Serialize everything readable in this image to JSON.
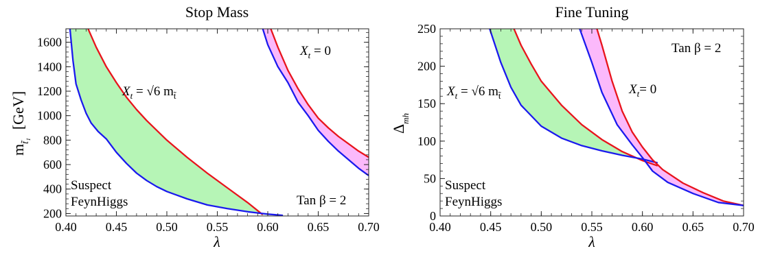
{
  "colors": {
    "suspect": "#e8141c",
    "feynhiggs": "#1a1aee",
    "band_mixed": "#b6f5b6",
    "band_zero": "#fbb9fb",
    "label_mixed": "#22aa22",
    "label_zero": "#8b1a8b"
  },
  "chart_data": [
    {
      "type": "area",
      "title": "Stop Mass",
      "xlabel": "λ",
      "ylabel_main": "m",
      "ylabel_sub": "t̃₁",
      "ylabel_unit": "[GeV]",
      "xlim": [
        0.4,
        0.7
      ],
      "ylim": [
        180,
        1710
      ],
      "xticks": [
        "0.40",
        "0.45",
        "0.50",
        "0.55",
        "0.60",
        "0.65",
        "0.70"
      ],
      "yticks": [
        "200",
        "400",
        "600",
        "800",
        "1000",
        "1200",
        "1400",
        "1600"
      ],
      "grid": false,
      "legend": {
        "placement": "bottom-left",
        "entries": [
          {
            "label": "Suspect",
            "color": "#e8141c"
          },
          {
            "label": "FeynHiggs",
            "color": "#1a1aee"
          }
        ]
      },
      "annotations": {
        "tanbeta": "Tan β = 2",
        "band_mixed": {
          "pre": "X",
          "sub": "t",
          "mid": " = √6 m",
          "sub2": "t̃"
        },
        "band_zero": {
          "pre": "X",
          "sub": "t",
          "mid": " = 0"
        }
      },
      "series": [
        {
          "name": "Suspect",
          "band": "mixed",
          "x": [
            0.422,
            0.43,
            0.44,
            0.45,
            0.46,
            0.47,
            0.48,
            0.5,
            0.52,
            0.54,
            0.56,
            0.58,
            0.595
          ],
          "y": [
            1710,
            1560,
            1400,
            1270,
            1150,
            1050,
            960,
            800,
            660,
            530,
            410,
            290,
            190
          ]
        },
        {
          "name": "FeynHiggs",
          "band": "mixed",
          "x": [
            0.404,
            0.407,
            0.41,
            0.415,
            0.42,
            0.425,
            0.432,
            0.44,
            0.45,
            0.46,
            0.47,
            0.48,
            0.49,
            0.5,
            0.52,
            0.54,
            0.56,
            0.58,
            0.6,
            0.615
          ],
          "y": [
            1710,
            1450,
            1260,
            1130,
            1020,
            940,
            870,
            810,
            700,
            610,
            530,
            470,
            420,
            380,
            320,
            270,
            240,
            215,
            195,
            185
          ]
        },
        {
          "name": "Suspect",
          "band": "zero",
          "x": [
            0.603,
            0.61,
            0.62,
            0.63,
            0.64,
            0.65,
            0.66,
            0.67,
            0.68,
            0.69,
            0.7
          ],
          "y": [
            1710,
            1560,
            1370,
            1220,
            1090,
            980,
            900,
            830,
            770,
            710,
            660
          ]
        },
        {
          "name": "FeynHiggs",
          "band": "zero",
          "x": [
            0.595,
            0.6,
            0.61,
            0.62,
            0.63,
            0.64,
            0.65,
            0.66,
            0.67,
            0.68,
            0.69,
            0.7
          ],
          "y": [
            1710,
            1580,
            1400,
            1270,
            1110,
            1000,
            880,
            790,
            710,
            640,
            570,
            510
          ]
        }
      ]
    },
    {
      "type": "area",
      "title": "Fine Tuning",
      "xlabel": "λ",
      "ylabel_main": "Δ",
      "ylabel_sub": "mh",
      "xlim": [
        0.4,
        0.7
      ],
      "ylim": [
        0,
        250
      ],
      "xticks": [
        "0.40",
        "0.45",
        "0.50",
        "0.55",
        "0.60",
        "0.65",
        "0.70"
      ],
      "yticks": [
        "0",
        "50",
        "100",
        "150",
        "200",
        "250"
      ],
      "grid": false,
      "legend": {
        "placement": "bottom-left",
        "entries": [
          {
            "label": "Suspect",
            "color": "#e8141c"
          },
          {
            "label": "FeynHiggs",
            "color": "#1a1aee"
          }
        ]
      },
      "annotations": {
        "tanbeta": "Tan β = 2",
        "band_mixed": {
          "pre": "X",
          "sub": "t",
          "mid": " = √6 m",
          "sub2": "t̃"
        },
        "band_zero": {
          "pre": "X",
          "sub": "t",
          "mid": "= 0"
        }
      },
      "series": [
        {
          "name": "Suspect",
          "band": "mixed",
          "x": [
            0.473,
            0.48,
            0.49,
            0.5,
            0.52,
            0.54,
            0.56,
            0.58,
            0.6,
            0.615
          ],
          "y": [
            250,
            228,
            203,
            180,
            148,
            122,
            102,
            86,
            74,
            67
          ]
        },
        {
          "name": "FeynHiggs",
          "band": "mixed",
          "x": [
            0.449,
            0.46,
            0.47,
            0.48,
            0.5,
            0.52,
            0.54,
            0.56,
            0.58,
            0.6,
            0.615
          ],
          "y": [
            250,
            205,
            172,
            148,
            120,
            104,
            94,
            87,
            81,
            76,
            71
          ]
        },
        {
          "name": "Suspect",
          "band": "zero",
          "x": [
            0.555,
            0.56,
            0.57,
            0.58,
            0.59,
            0.6,
            0.61,
            0.62,
            0.64,
            0.66,
            0.68,
            0.7
          ],
          "y": [
            250,
            228,
            180,
            140,
            112,
            92,
            75,
            62,
            44,
            31,
            20,
            14
          ]
        },
        {
          "name": "FeynHiggs",
          "band": "zero",
          "x": [
            0.538,
            0.55,
            0.56,
            0.575,
            0.59,
            0.6,
            0.61,
            0.625,
            0.65,
            0.675,
            0.7
          ],
          "y": [
            250,
            205,
            165,
            122,
            95,
            78,
            60,
            45,
            30,
            18,
            14
          ]
        }
      ]
    }
  ]
}
